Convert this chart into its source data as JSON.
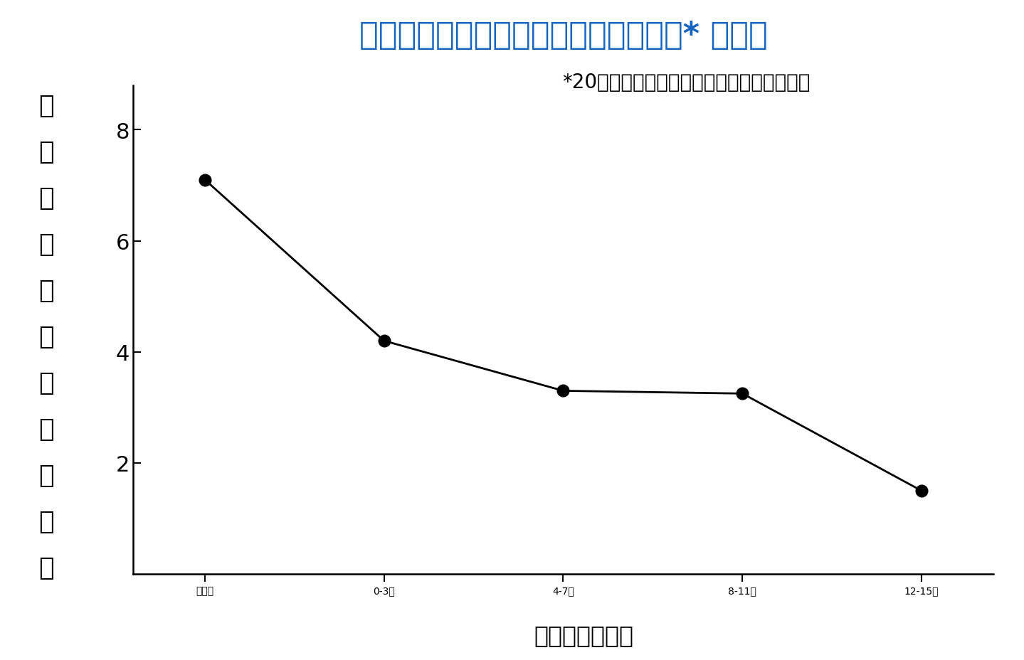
{
  "title": "国内治験における平均めまい発作回数* の推移",
  "subtitle": "*20分以上持続する中等度以上のめまい頻度",
  "xlabel": "治療開始後期間",
  "ylabel_chars": [
    "期",
    "間",
    "内",
    "総",
    "め",
    "ま",
    "い",
    "発",
    "作",
    "回",
    "数"
  ],
  "x_labels": [
    "治療前",
    "0-3週",
    "4-7週",
    "8-11週",
    "12-15週"
  ],
  "x_values": [
    0,
    1,
    2,
    3,
    4
  ],
  "y_values": [
    7.1,
    4.2,
    3.3,
    3.25,
    1.5
  ],
  "yticks": [
    2,
    4,
    6,
    8
  ],
  "ylim": [
    0,
    8.8
  ],
  "title_color": "#1565C0",
  "line_color": "#000000",
  "marker_color": "#000000",
  "background_color": "#ffffff",
  "title_fontsize": 32,
  "subtitle_fontsize": 20,
  "axis_label_fontsize": 24,
  "tick_fontsize": 22,
  "ylabel_fontsize": 26,
  "marker_size": 12,
  "line_width": 2.0
}
